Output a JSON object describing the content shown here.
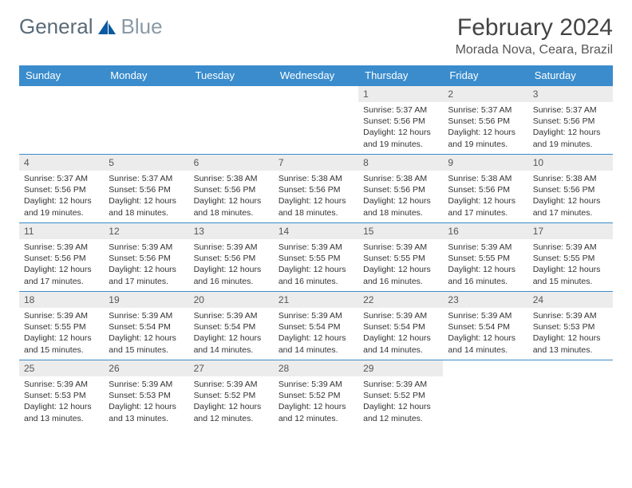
{
  "brand": {
    "part1": "General",
    "part2": "Blue"
  },
  "title": "February 2024",
  "location": "Morada Nova, Ceara, Brazil",
  "theme": {
    "header_bg": "#3a8ccc",
    "header_text": "#ffffff",
    "row_border": "#3a8ccc",
    "daynum_bg": "#ececec",
    "daynum_text": "#555555",
    "body_text": "#333333",
    "page_bg": "#ffffff",
    "logo_primary": "#5a6b78",
    "logo_secondary": "#8a9aa6",
    "logo_accent": "#0a5aa0",
    "title_color": "#444444",
    "location_color": "#555555"
  },
  "weekdays": [
    "Sunday",
    "Monday",
    "Tuesday",
    "Wednesday",
    "Thursday",
    "Friday",
    "Saturday"
  ],
  "weeks": [
    [
      {
        "empty": true
      },
      {
        "empty": true
      },
      {
        "empty": true
      },
      {
        "empty": true
      },
      {
        "day": "1",
        "sunrise": "5:37 AM",
        "sunset": "5:56 PM",
        "daylight": "12 hours and 19 minutes."
      },
      {
        "day": "2",
        "sunrise": "5:37 AM",
        "sunset": "5:56 PM",
        "daylight": "12 hours and 19 minutes."
      },
      {
        "day": "3",
        "sunrise": "5:37 AM",
        "sunset": "5:56 PM",
        "daylight": "12 hours and 19 minutes."
      }
    ],
    [
      {
        "day": "4",
        "sunrise": "5:37 AM",
        "sunset": "5:56 PM",
        "daylight": "12 hours and 19 minutes."
      },
      {
        "day": "5",
        "sunrise": "5:37 AM",
        "sunset": "5:56 PM",
        "daylight": "12 hours and 18 minutes."
      },
      {
        "day": "6",
        "sunrise": "5:38 AM",
        "sunset": "5:56 PM",
        "daylight": "12 hours and 18 minutes."
      },
      {
        "day": "7",
        "sunrise": "5:38 AM",
        "sunset": "5:56 PM",
        "daylight": "12 hours and 18 minutes."
      },
      {
        "day": "8",
        "sunrise": "5:38 AM",
        "sunset": "5:56 PM",
        "daylight": "12 hours and 18 minutes."
      },
      {
        "day": "9",
        "sunrise": "5:38 AM",
        "sunset": "5:56 PM",
        "daylight": "12 hours and 17 minutes."
      },
      {
        "day": "10",
        "sunrise": "5:38 AM",
        "sunset": "5:56 PM",
        "daylight": "12 hours and 17 minutes."
      }
    ],
    [
      {
        "day": "11",
        "sunrise": "5:39 AM",
        "sunset": "5:56 PM",
        "daylight": "12 hours and 17 minutes."
      },
      {
        "day": "12",
        "sunrise": "5:39 AM",
        "sunset": "5:56 PM",
        "daylight": "12 hours and 17 minutes."
      },
      {
        "day": "13",
        "sunrise": "5:39 AM",
        "sunset": "5:56 PM",
        "daylight": "12 hours and 16 minutes."
      },
      {
        "day": "14",
        "sunrise": "5:39 AM",
        "sunset": "5:55 PM",
        "daylight": "12 hours and 16 minutes."
      },
      {
        "day": "15",
        "sunrise": "5:39 AM",
        "sunset": "5:55 PM",
        "daylight": "12 hours and 16 minutes."
      },
      {
        "day": "16",
        "sunrise": "5:39 AM",
        "sunset": "5:55 PM",
        "daylight": "12 hours and 16 minutes."
      },
      {
        "day": "17",
        "sunrise": "5:39 AM",
        "sunset": "5:55 PM",
        "daylight": "12 hours and 15 minutes."
      }
    ],
    [
      {
        "day": "18",
        "sunrise": "5:39 AM",
        "sunset": "5:55 PM",
        "daylight": "12 hours and 15 minutes."
      },
      {
        "day": "19",
        "sunrise": "5:39 AM",
        "sunset": "5:54 PM",
        "daylight": "12 hours and 15 minutes."
      },
      {
        "day": "20",
        "sunrise": "5:39 AM",
        "sunset": "5:54 PM",
        "daylight": "12 hours and 14 minutes."
      },
      {
        "day": "21",
        "sunrise": "5:39 AM",
        "sunset": "5:54 PM",
        "daylight": "12 hours and 14 minutes."
      },
      {
        "day": "22",
        "sunrise": "5:39 AM",
        "sunset": "5:54 PM",
        "daylight": "12 hours and 14 minutes."
      },
      {
        "day": "23",
        "sunrise": "5:39 AM",
        "sunset": "5:54 PM",
        "daylight": "12 hours and 14 minutes."
      },
      {
        "day": "24",
        "sunrise": "5:39 AM",
        "sunset": "5:53 PM",
        "daylight": "12 hours and 13 minutes."
      }
    ],
    [
      {
        "day": "25",
        "sunrise": "5:39 AM",
        "sunset": "5:53 PM",
        "daylight": "12 hours and 13 minutes."
      },
      {
        "day": "26",
        "sunrise": "5:39 AM",
        "sunset": "5:53 PM",
        "daylight": "12 hours and 13 minutes."
      },
      {
        "day": "27",
        "sunrise": "5:39 AM",
        "sunset": "5:52 PM",
        "daylight": "12 hours and 12 minutes."
      },
      {
        "day": "28",
        "sunrise": "5:39 AM",
        "sunset": "5:52 PM",
        "daylight": "12 hours and 12 minutes."
      },
      {
        "day": "29",
        "sunrise": "5:39 AM",
        "sunset": "5:52 PM",
        "daylight": "12 hours and 12 minutes."
      },
      {
        "empty": true
      },
      {
        "empty": true
      }
    ]
  ],
  "labels": {
    "sunrise": "Sunrise:",
    "sunset": "Sunset:",
    "daylight": "Daylight:"
  },
  "fonts": {
    "title_pt": 30,
    "location_pt": 16,
    "weekday_pt": 13,
    "daynum_pt": 12,
    "body_pt": 10.5,
    "logo_pt": 26
  }
}
